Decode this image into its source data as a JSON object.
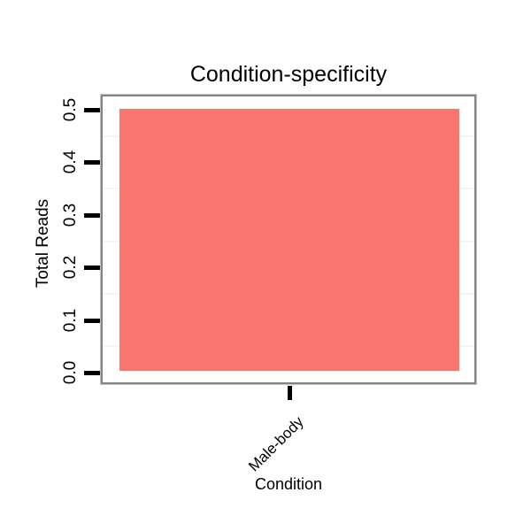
{
  "chart_data": {
    "type": "bar",
    "title": "Condition-specificity",
    "xlabel": "Condition",
    "ylabel": "Total Reads",
    "categories": [
      "Male-body"
    ],
    "values": [
      0.5
    ],
    "ylim": [
      0,
      0.5
    ],
    "ytick_values": [
      0,
      0.1,
      0.2,
      0.3,
      0.4,
      0.5
    ],
    "ytick_labels": [
      "0.0",
      "0.1",
      "0.2",
      "0.3",
      "0.4",
      "0.5"
    ],
    "minor_gridline_values": [
      0.05,
      0.15,
      0.25,
      0.35,
      0.45
    ],
    "grid": "horizontal-minor-only",
    "legend": "none",
    "tick_label_rotation_y": -90,
    "tick_label_rotation_x": -45,
    "colors": {
      "bar_fill": "#F8766D",
      "panel_border": "#848484",
      "panel_border_outer": "#C3C3C3",
      "minor_grid": "#F6F4F4",
      "axis_tick": "#000000",
      "text": "#000000",
      "background": "#FFFFFF"
    }
  }
}
